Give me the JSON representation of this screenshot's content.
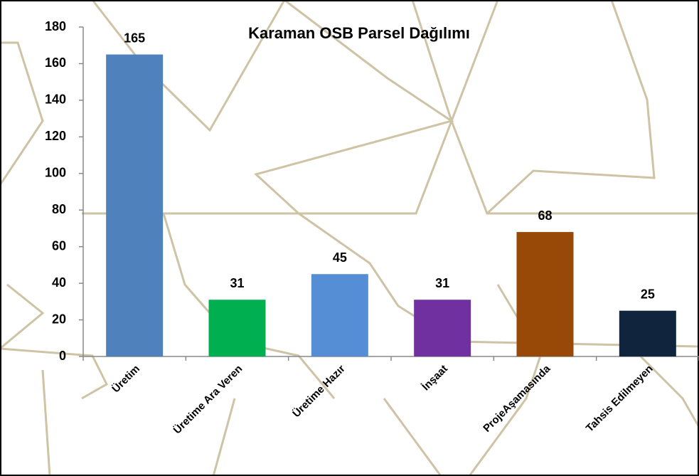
{
  "chart_data": {
    "type": "bar",
    "title": "Karaman OSB Parsel Dağılımı",
    "categories": [
      "Üretim",
      "Üretime Ara Veren",
      "Üretime Hazır",
      "İnşaat",
      "ProjeAşamasında",
      "Tahsis Edilmeyen"
    ],
    "values": [
      165,
      31,
      45,
      31,
      68,
      25
    ],
    "colors": [
      "#4f81bd",
      "#00b050",
      "#558ed5",
      "#7030a0",
      "#984807",
      "#10243e"
    ],
    "ylim": [
      0,
      180
    ],
    "yticks": [
      0,
      20,
      40,
      60,
      80,
      100,
      120,
      140,
      160,
      180
    ]
  }
}
